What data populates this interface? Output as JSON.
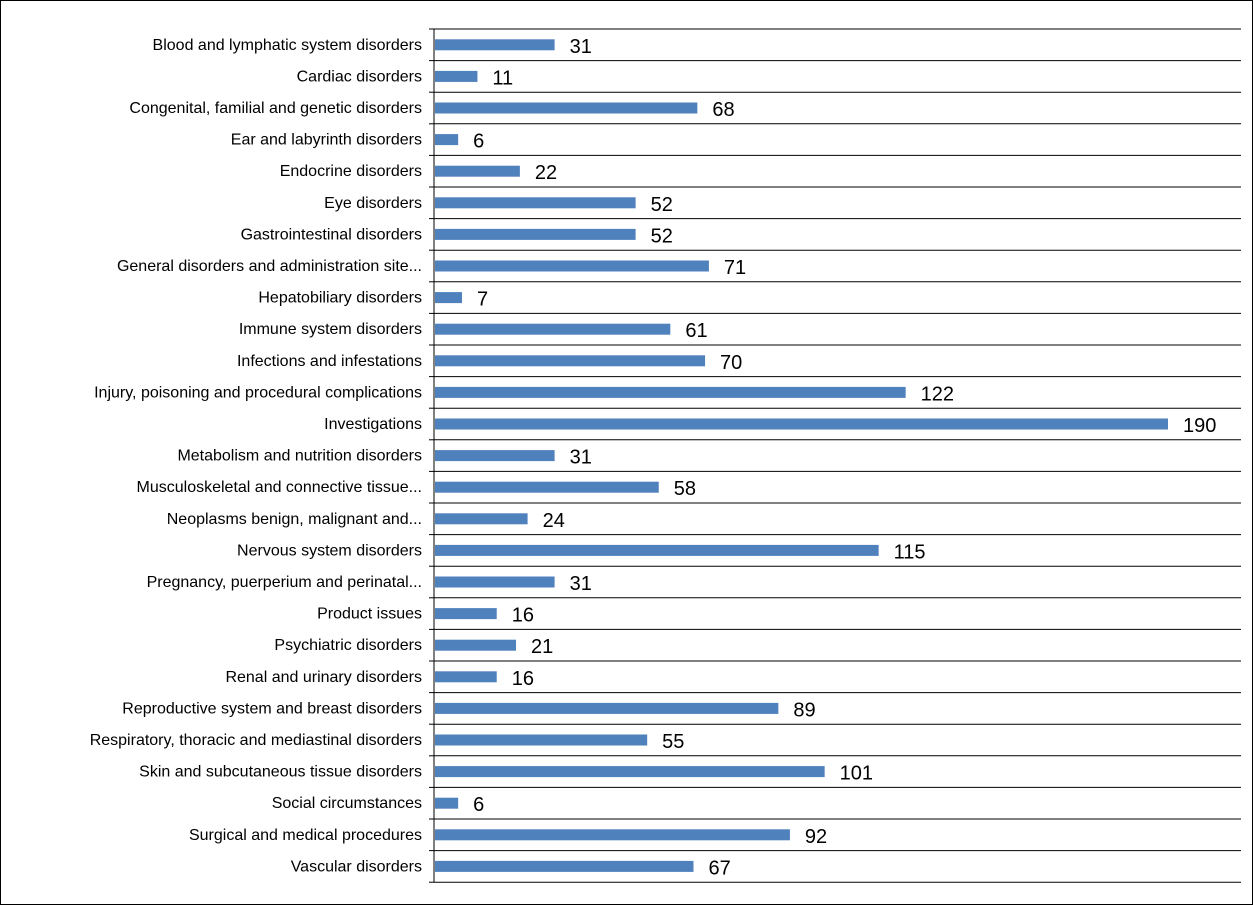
{
  "chart_data": {
    "type": "bar",
    "orientation": "horizontal",
    "title": "",
    "xlabel": "",
    "ylabel": "",
    "xlim": [
      0,
      190
    ],
    "grid": "horizontal separators",
    "bar_color": "#4F81BD",
    "categories": [
      "Blood and lymphatic system disorders",
      "Cardiac disorders",
      "Congenital, familial and genetic disorders",
      "Ear and labyrinth disorders",
      "Endocrine disorders",
      "Eye disorders",
      "Gastrointestinal disorders",
      "General disorders and administration site...",
      "Hepatobiliary disorders",
      "Immune system disorders",
      "Infections and infestations",
      "Injury, poisoning and procedural complications",
      "Investigations",
      "Metabolism and nutrition disorders",
      "Musculoskeletal and connective tissue...",
      "Neoplasms benign, malignant and...",
      "Nervous system disorders",
      "Pregnancy, puerperium and perinatal...",
      "Product issues",
      "Psychiatric disorders",
      "Renal and urinary disorders",
      "Reproductive system and breast disorders",
      "Respiratory, thoracic and mediastinal disorders",
      "Skin and subcutaneous tissue disorders",
      "Social circumstances",
      "Surgical and medical procedures",
      "Vascular disorders"
    ],
    "values": [
      31,
      11,
      68,
      6,
      22,
      52,
      52,
      71,
      7,
      61,
      70,
      122,
      190,
      31,
      58,
      24,
      115,
      31,
      16,
      21,
      16,
      89,
      55,
      101,
      6,
      92,
      67
    ]
  }
}
